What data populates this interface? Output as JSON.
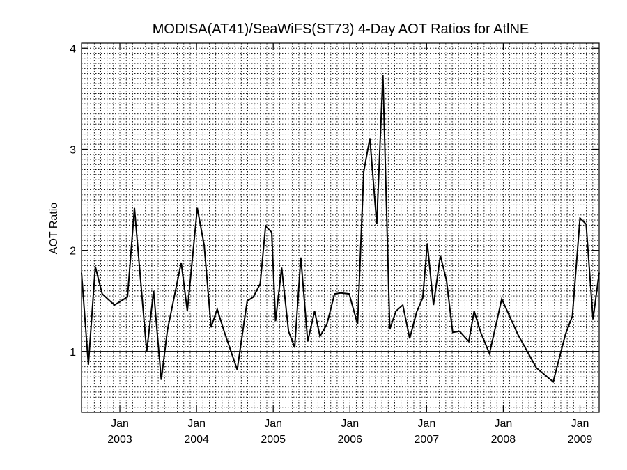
{
  "chart_data": {
    "type": "line",
    "title": "MODISA(AT41)/SeaWiFS(ST73) 4-Day AOT Ratios for AtlNE",
    "ylabel": "AOT Ratio",
    "xlabel": "",
    "xlim": [
      2002.5,
      2009.25
    ],
    "ylim": [
      0.4,
      4.05
    ],
    "y_ticks": [
      1,
      2,
      3,
      4
    ],
    "x_ticks": [
      {
        "value": 2003.0,
        "month": "Jan",
        "year": "2003"
      },
      {
        "value": 2004.0,
        "month": "Jan",
        "year": "2004"
      },
      {
        "value": 2005.0,
        "month": "Jan",
        "year": "2005"
      },
      {
        "value": 2006.0,
        "month": "Jan",
        "year": "2006"
      },
      {
        "value": 2007.0,
        "month": "Jan",
        "year": "2007"
      },
      {
        "value": 2008.0,
        "month": "Jan",
        "year": "2008"
      },
      {
        "value": 2009.0,
        "month": "Jan",
        "year": "2009"
      }
    ],
    "reference_line": 1.0,
    "grid": true,
    "x": [
      2002.5,
      2002.59,
      2002.68,
      2002.77,
      2002.93,
      2003.1,
      2003.19,
      2003.35,
      2003.44,
      2003.54,
      2003.62,
      2003.8,
      2003.88,
      2004.01,
      2004.1,
      2004.19,
      2004.27,
      2004.36,
      2004.53,
      2004.66,
      2004.74,
      2004.83,
      2004.9,
      2004.98,
      2005.03,
      2005.11,
      2005.2,
      2005.28,
      2005.36,
      2005.45,
      2005.54,
      2005.61,
      2005.7,
      2005.8,
      2005.88,
      2005.99,
      2006.1,
      2006.18,
      2006.26,
      2006.35,
      2006.43,
      2006.52,
      2006.6,
      2006.69,
      2006.78,
      2006.87,
      2006.95,
      2007.01,
      2007.09,
      2007.18,
      2007.26,
      2007.34,
      2007.43,
      2007.55,
      2007.62,
      2007.71,
      2007.82,
      2007.98,
      2008.19,
      2008.43,
      2008.65,
      2008.81,
      2008.9,
      2009.0,
      2009.08,
      2009.17,
      2009.25
    ],
    "y": [
      1.78,
      0.87,
      1.84,
      1.57,
      1.46,
      1.54,
      2.42,
      1.0,
      1.6,
      0.72,
      1.21,
      1.88,
      1.4,
      2.42,
      2.05,
      1.24,
      1.42,
      1.2,
      0.82,
      1.5,
      1.54,
      1.67,
      2.24,
      2.18,
      1.3,
      1.83,
      1.2,
      1.04,
      1.93,
      1.1,
      1.4,
      1.15,
      1.27,
      1.57,
      1.58,
      1.57,
      1.27,
      2.78,
      3.11,
      2.26,
      3.74,
      1.22,
      1.4,
      1.46,
      1.13,
      1.39,
      1.53,
      2.07,
      1.46,
      1.95,
      1.7,
      1.19,
      1.2,
      1.1,
      1.4,
      1.18,
      0.98,
      1.52,
      1.17,
      0.84,
      0.7,
      1.17,
      1.35,
      2.32,
      2.26,
      1.32,
      1.78
    ]
  }
}
